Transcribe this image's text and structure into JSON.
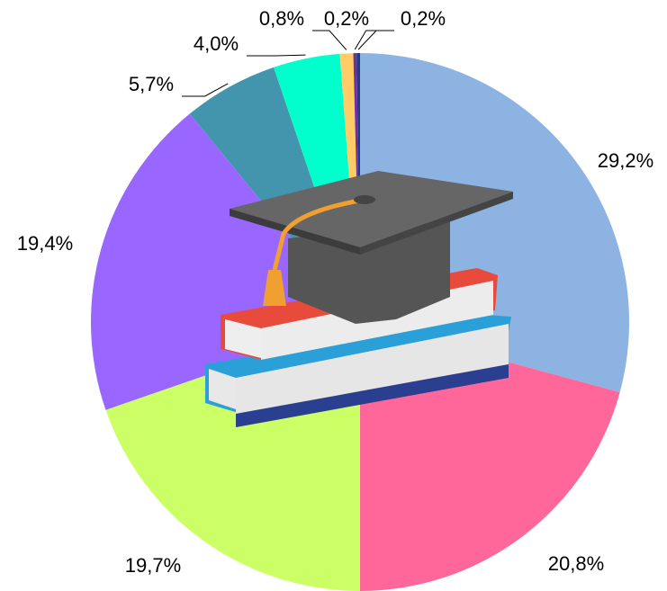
{
  "chart_data": {
    "type": "pie",
    "values": [
      29.2,
      20.8,
      19.7,
      19.4,
      5.7,
      4.0,
      0.8,
      0.2,
      0.2
    ],
    "value_labels": [
      "29,2%",
      "20,8%",
      "19,7%",
      "19,4%",
      "5,7%",
      "4,0%",
      "0,8%",
      "0,2%",
      "0,2%"
    ],
    "colors": [
      "#8db3e2",
      "#ff6699",
      "#ccff66",
      "#9966ff",
      "#4295ad",
      "#00ffcc",
      "#ffcc66",
      "#7030a0",
      "#1f3c88"
    ]
  }
}
